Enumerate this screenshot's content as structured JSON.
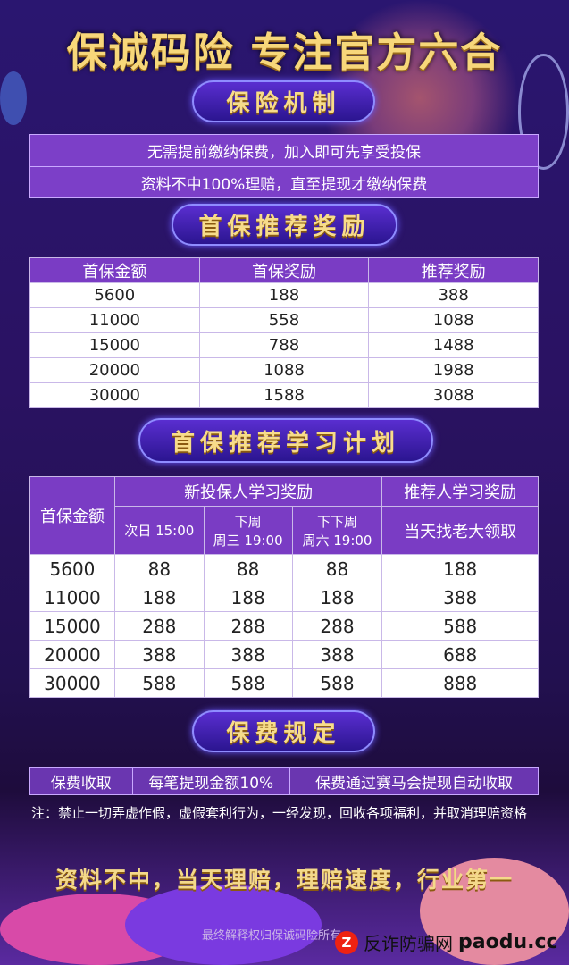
{
  "title": "保诚码险  专注官方六合",
  "section1": {
    "heading": "保险机制",
    "lines": [
      "无需提前缴纳保费，加入即可先享受投保",
      "资料不中100%理赔，直至提现才缴纳保费"
    ]
  },
  "section2": {
    "heading": "首保推荐奖励",
    "headers": [
      "首保金额",
      "首保奖励",
      "推荐奖励"
    ],
    "rows": [
      [
        "5600",
        "188",
        "388"
      ],
      [
        "11000",
        "558",
        "1088"
      ],
      [
        "15000",
        "788",
        "1488"
      ],
      [
        "20000",
        "1088",
        "1988"
      ],
      [
        "30000",
        "1588",
        "3088"
      ]
    ]
  },
  "section3": {
    "heading": "首保推荐学习计划",
    "col_amount": "首保金额",
    "group_new": "新投保人学习奖励",
    "group_ref": "推荐人学习奖励",
    "sub": [
      "次日 15:00",
      "下周\n周三 19:00",
      "下下周\n周六 19:00",
      "当天找老大领取"
    ],
    "rows": [
      [
        "5600",
        "88",
        "88",
        "88",
        "188"
      ],
      [
        "11000",
        "188",
        "188",
        "188",
        "388"
      ],
      [
        "15000",
        "288",
        "288",
        "288",
        "588"
      ],
      [
        "20000",
        "388",
        "388",
        "388",
        "688"
      ],
      [
        "30000",
        "588",
        "588",
        "588",
        "888"
      ]
    ]
  },
  "section4": {
    "heading": "保费规定",
    "cells": [
      "保费收取",
      "每笔提现金额10%",
      "保费通过赛马会提现自动收取"
    ]
  },
  "note": "注：禁止一切弄虚作假，虚假套利行为，一经发现，回收各项福利，并取消理赔资格",
  "slogan": "资料不中，当天理赔，理赔速度，行业第一",
  "rights": "最终解释权归保诚码险所有",
  "watermark": {
    "text": "反诈防骗网",
    "domain": "paodu.cc"
  }
}
